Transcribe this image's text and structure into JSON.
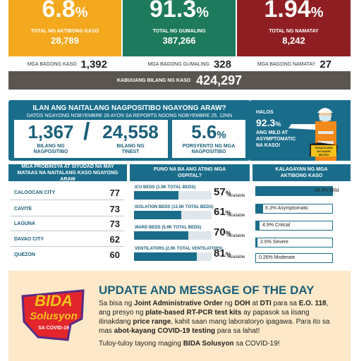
{
  "top_cards": [
    {
      "big": "6.8",
      "unit": "%",
      "label": "TOTAL NG AKTIBONG KASO",
      "value": "28,789",
      "color": "#f4a81d"
    },
    {
      "big": "91.3",
      "unit": "%",
      "label": "TOTAL NG GUMALING",
      "value": "387,266",
      "color": "#1e7a5c"
    },
    {
      "big": "1.94",
      "unit": "%",
      "label": "TOTAL NG NAMATAY",
      "value": "8,242",
      "color": "#8f1e22"
    }
  ],
  "new_counts": [
    {
      "label": "MGA BAGONG KASO",
      "value": "1,392"
    },
    {
      "label": "MGA BAGONG GUMALING",
      "value": "328"
    },
    {
      "label": "MGA BAGONG NAMATAY",
      "value": "27"
    }
  ],
  "total": {
    "label": "KABUUANG BILANG NG KASO",
    "value": "424,297"
  },
  "testing": {
    "title": "ILAN ANG NAITALANG NAGPOSITIBO NGAYONG ARAW?",
    "subtitle": "DATOS NGAYONG NOBYEMBRE 26 AYON SA REPORTS NOONG NOBYEMBRE 25, 12NN",
    "positive": "1,367",
    "positive_label_1": "BILANG NG",
    "positive_label_2": "NAGPOSITIBO",
    "separator": "/",
    "tested": "24,558",
    "tested_label_1": "BILANG NG",
    "tested_label_2": "TINEST",
    "rate": "5.6",
    "rate_unit": "%",
    "rate_label_1": "PORSYENTO NG MGA",
    "rate_label_2": "NAGPOSITIBO"
  },
  "halos": {
    "line1": "HALOS",
    "pct": "92.3",
    "unit": "%",
    "line2": "ANG MILD AT",
    "line3": "ASYMPTOMATIC",
    "line4": "NA KASO!",
    "sign1": "PANATILIHIN",
    "sign2": "NG ISANG",
    "sign3": "METRO"
  },
  "provinces": {
    "header": "MGA PROBINSYA AT SIYUDAD NA MAY MATAAS NA NAITALANG KASO NGAYONG ARAW",
    "items": [
      {
        "name": "CALOOCAN CITY",
        "value": "77"
      },
      {
        "name": "CAVITE",
        "value": "73"
      },
      {
        "name": "LAGUNA",
        "value": "73"
      },
      {
        "name": "DAVAO CITY",
        "value": "62"
      },
      {
        "name": "QUEZON",
        "value": "60"
      }
    ]
  },
  "hospital": {
    "header": "PUNO NA BA ANG ATING MGA OSPITAL?",
    "available_label": "Available",
    "beds": [
      {
        "label": "ICU BEDS (1.9K TOTAL BEDS)",
        "pct": "57",
        "fill": 0.57
      },
      {
        "label": "ISOLATION BEDS (13.5K TOTAL BEDS)",
        "pct": "61",
        "fill": 0.61
      },
      {
        "label": "WARD BEDS (5.9K TOTAL BEDS)",
        "pct": "70",
        "fill": 0.7
      },
      {
        "label": "VENTILATORS (2.0K TOTAL VENTILATORS)",
        "pct": "81",
        "fill": 0.81
      }
    ]
  },
  "status": {
    "header": "KALAGAYAN NG MGA AKTIBONG KASO",
    "items": [
      {
        "text": "84.0% Mild",
        "fill": 0.84
      },
      {
        "text": "8.3% Asymptomatic",
        "fill": 0.083
      },
      {
        "text": "4.9% Critical",
        "fill": 0.049
      },
      {
        "text": "2.6% Severe",
        "fill": 0.026
      },
      {
        "text": "0.26% Moderate",
        "fill": 0.0026
      }
    ]
  },
  "update": {
    "logo_line1": "BIDA",
    "logo_line2": "Solusyon",
    "logo_line3": "SA COVID-19",
    "title": "UPDATE AND MESSAGE OF THE DAY",
    "p1": "Sa bisa ng ",
    "b1": "Joint Administrative Order",
    "p2": " ng ",
    "b2": "DOH",
    "p3": " at ",
    "b3": "DTI",
    "p4": " para sa ",
    "b4": "E.O. 118",
    "p5": ", ang presyo ng ",
    "b5": "plate-based RT-PCR test kits",
    "p6": " ay papasok sa iisang itinakdang ",
    "b6": "price range",
    "p7": ", kahit saan mang laboratoryo ipagawa. Para ito sa mas ",
    "b7": "abot-kayang COVID-19 testing",
    "p8": " para sa lahat!",
    "foot1": "Tuloy-tuloy tayong maging ",
    "foot_b": "BIDA Solusyon",
    "foot2": " sa COVID-19!"
  },
  "colors": {
    "teal": "#1a6d8a",
    "orange": "#f4a81d",
    "green": "#1e7a5c",
    "red": "#8f1e22",
    "cream": "#fde9c9"
  }
}
